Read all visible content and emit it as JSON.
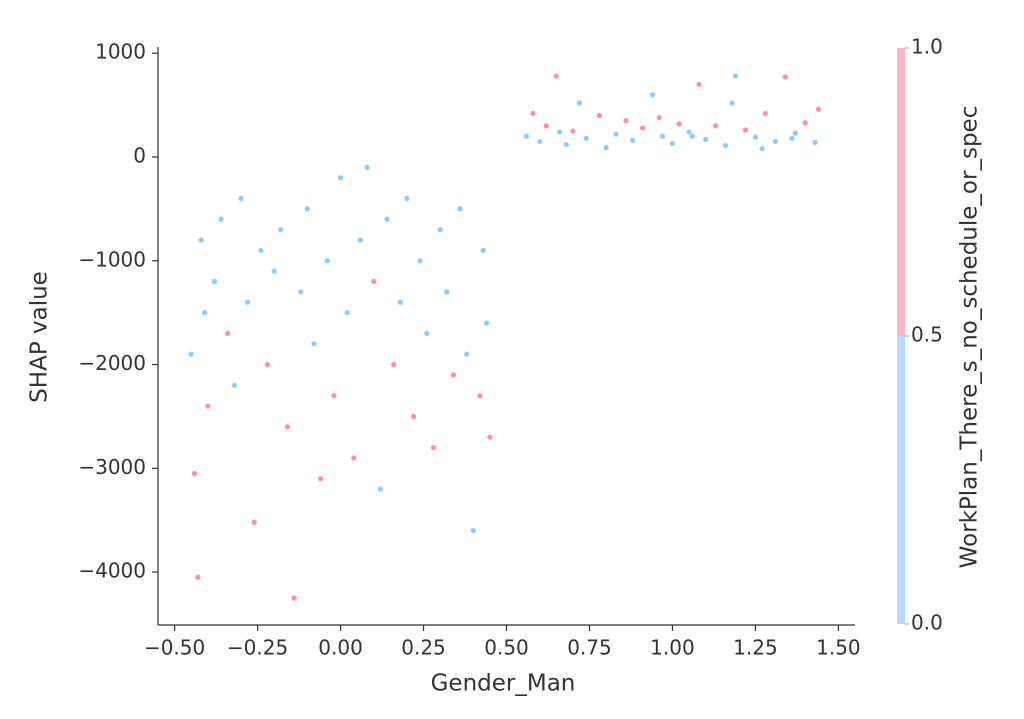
{
  "chart_data": {
    "type": "scatter",
    "x_label": "Gender_Man",
    "y_label": "SHAP value",
    "colorbar_label": "WorkPlan_There_s_no_schedule_or_spec",
    "colors": [
      "#008bfb",
      "#ff0051"
    ],
    "colorbar_colors": [
      "#b9d9fb",
      "#ffb3c6"
    ],
    "colorbar_lim": [
      0,
      1
    ],
    "colorbar_ticks": [
      {
        "value": 0,
        "label": "0.0"
      },
      {
        "value": 0.5,
        "label": "0.5"
      },
      {
        "value": 1,
        "label": "1.0"
      }
    ],
    "xlim": [
      -0.55,
      1.55
    ],
    "ylim": [
      -4510,
      1060
    ],
    "xticks": [
      {
        "value": -0.5,
        "label": "−0.50"
      },
      {
        "value": -0.25,
        "label": "−0.25"
      },
      {
        "value": 0,
        "label": "0.00"
      },
      {
        "value": 0.25,
        "label": "0.25"
      },
      {
        "value": 0.5,
        "label": "0.50"
      },
      {
        "value": 0.75,
        "label": "0.75"
      },
      {
        "value": 1,
        "label": "1.00"
      },
      {
        "value": 1.25,
        "label": "1.25"
      },
      {
        "value": 1.5,
        "label": "1.50"
      }
    ],
    "yticks": [
      1000,
      0,
      {
        "value": -1000,
        "label": "−1000"
      },
      {
        "value": -2000,
        "label": "−2000"
      },
      {
        "value": -3000,
        "label": "−3000"
      },
      {
        "value": -4000,
        "label": "−4000"
      }
    ],
    "x": [
      0.56,
      0.6,
      0.62,
      0.65,
      0.68,
      0.7,
      0.74,
      0.78,
      0.8,
      0.83,
      0.86,
      0.88,
      0.91,
      0.94,
      0.97,
      1.0,
      1.02,
      1.05,
      1.08,
      1.1,
      1.13,
      1.16,
      1.19,
      1.22,
      1.25,
      1.28,
      1.31,
      1.34,
      1.37,
      1.4,
      1.43,
      1.44,
      0.58,
      0.72,
      1.18,
      0.66,
      1.06,
      1.36,
      0.96,
      1.27,
      -0.45,
      -0.44,
      -0.43,
      -0.42,
      -0.4,
      -0.38,
      -0.36,
      -0.34,
      -0.32,
      -0.3,
      -0.28,
      -0.26,
      -0.24,
      -0.22,
      -0.2,
      -0.18,
      -0.16,
      -0.14,
      -0.12,
      -0.1,
      -0.08,
      -0.06,
      -0.04,
      -0.02,
      0.0,
      0.02,
      0.04,
      0.06,
      0.08,
      0.1,
      0.12,
      0.14,
      0.16,
      0.18,
      0.2,
      0.22,
      0.24,
      0.26,
      0.28,
      0.3,
      0.32,
      0.34,
      0.36,
      0.38,
      0.4,
      0.42,
      0.43,
      0.44,
      0.45,
      -0.41
    ],
    "y": [
      200,
      150,
      300,
      780,
      120,
      250,
      180,
      400,
      90,
      220,
      350,
      160,
      280,
      600,
      200,
      130,
      320,
      240,
      700,
      170,
      300,
      110,
      780,
      260,
      190,
      420,
      150,
      770,
      230,
      330,
      140,
      460,
      420,
      520,
      520,
      240,
      200,
      180,
      380,
      80,
      -1900,
      -3050,
      -4050,
      -800,
      -2400,
      -1200,
      -600,
      -1700,
      -2200,
      -400,
      -1400,
      -3520,
      -900,
      -2000,
      -1100,
      -700,
      -2600,
      -4250,
      -1300,
      -500,
      -1800,
      -3100,
      -1000,
      -2300,
      -200,
      -1500,
      -2900,
      -800,
      -100,
      -1200,
      -3200,
      -600,
      -2000,
      -1400,
      -400,
      -2500,
      -1000,
      -1700,
      -2800,
      -700,
      -1300,
      -2100,
      -500,
      -1900,
      -3600,
      -2300,
      -900,
      -1600,
      -2700,
      -1500
    ],
    "c": [
      0,
      0,
      1,
      1,
      0,
      1,
      0,
      1,
      0,
      0,
      1,
      0,
      1,
      0,
      0,
      0,
      1,
      0,
      1,
      0,
      1,
      0,
      0,
      1,
      0,
      1,
      0,
      1,
      0,
      1,
      0,
      1,
      1,
      0,
      0,
      0,
      0,
      0,
      1,
      0,
      0,
      1,
      1,
      0,
      1,
      0,
      0,
      1,
      0,
      0,
      0,
      1,
      0,
      1,
      0,
      0,
      1,
      1,
      0,
      0,
      0,
      1,
      0,
      1,
      0,
      0,
      1,
      0,
      0,
      1,
      0,
      0,
      1,
      0,
      0,
      1,
      0,
      0,
      1,
      0,
      0,
      1,
      0,
      0,
      0,
      1,
      0,
      0,
      1,
      0
    ]
  }
}
